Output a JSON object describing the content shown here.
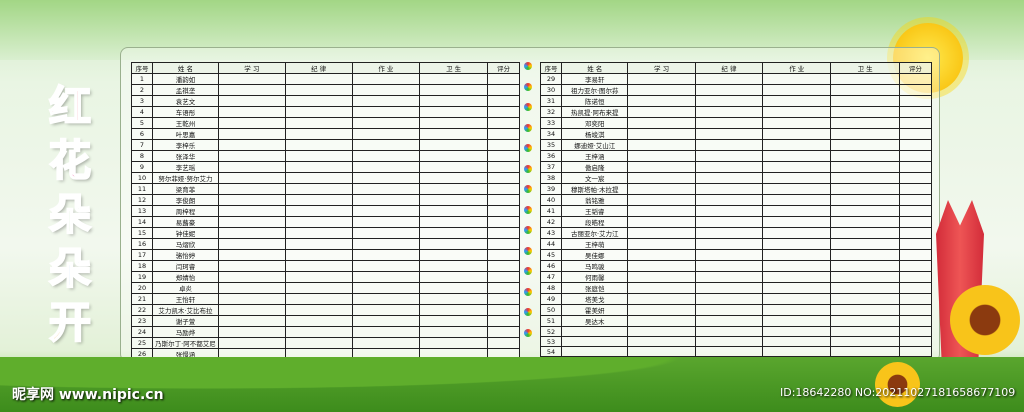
{
  "title_chars": [
    "红",
    "花",
    "朵",
    "朵",
    "开"
  ],
  "title_colors": [
    "#e8202a",
    "#e83d8f",
    "#3fa52a",
    "#1e8ce0",
    "#f08a1a"
  ],
  "headers": {
    "no": "序号",
    "name": "姓 名",
    "study": "学 习",
    "discipline": "纪 律",
    "homework": "作 业",
    "hygiene": "卫 生",
    "score": "评分"
  },
  "left_rows": [
    {
      "no": "1",
      "name": "潘韵如"
    },
    {
      "no": "2",
      "name": "孟祺垄"
    },
    {
      "no": "3",
      "name": "袁艺文"
    },
    {
      "no": "4",
      "name": "车语彤"
    },
    {
      "no": "5",
      "name": "王乾州"
    },
    {
      "no": "6",
      "name": "叶思嘉"
    },
    {
      "no": "7",
      "name": "李梓乐"
    },
    {
      "no": "8",
      "name": "张泽华"
    },
    {
      "no": "9",
      "name": "李艺瑶"
    },
    {
      "no": "10",
      "name": "努尔菲娅·努尔艾力"
    },
    {
      "no": "11",
      "name": "梁育菲"
    },
    {
      "no": "12",
      "name": "李俊朗"
    },
    {
      "no": "13",
      "name": "周梓程"
    },
    {
      "no": "14",
      "name": "易蕗豪"
    },
    {
      "no": "15",
      "name": "钟佳妮"
    },
    {
      "no": "16",
      "name": "马熠欣"
    },
    {
      "no": "17",
      "name": "骆怡婷"
    },
    {
      "no": "18",
      "name": "闫珂睿"
    },
    {
      "no": "19",
      "name": "郑婧怡"
    },
    {
      "no": "20",
      "name": "卓炎"
    },
    {
      "no": "21",
      "name": "王怡轩"
    },
    {
      "no": "22",
      "name": "艾力凯木·艾比布拉"
    },
    {
      "no": "23",
      "name": "谢子萱"
    },
    {
      "no": "24",
      "name": "马励烨"
    },
    {
      "no": "25",
      "name": "乃斯尔丁·阿不都艾尼"
    },
    {
      "no": "26",
      "name": "张憬涵"
    },
    {
      "no": "27",
      "name": "媞珂娅·艾合提"
    },
    {
      "no": "28",
      "name": "木再帕尔·迪力穆拉提"
    }
  ],
  "right_rows": [
    {
      "no": "29",
      "name": "李易轩"
    },
    {
      "no": "30",
      "name": "祖力亚尔·图尔荪"
    },
    {
      "no": "31",
      "name": "陈诺恒"
    },
    {
      "no": "32",
      "name": "热凯提·阿布来提"
    },
    {
      "no": "33",
      "name": "邓奕阳"
    },
    {
      "no": "34",
      "name": "杨竣淇"
    },
    {
      "no": "35",
      "name": "娜迪娅·艾山江"
    },
    {
      "no": "36",
      "name": "王梓涵"
    },
    {
      "no": "37",
      "name": "傲启隆"
    },
    {
      "no": "38",
      "name": "文一宸"
    },
    {
      "no": "39",
      "name": "穆斯塔帕·木拉提"
    },
    {
      "no": "40",
      "name": "翁铭雅"
    },
    {
      "no": "41",
      "name": "王韬睿"
    },
    {
      "no": "42",
      "name": "段皓程"
    },
    {
      "no": "43",
      "name": "古丽亚尔·艾力江"
    },
    {
      "no": "44",
      "name": "王梓萌"
    },
    {
      "no": "45",
      "name": "吴佳娜"
    },
    {
      "no": "46",
      "name": "马鸣骏"
    },
    {
      "no": "47",
      "name": "何雨馨"
    },
    {
      "no": "48",
      "name": "张庭恺"
    },
    {
      "no": "49",
      "name": "塔美戈"
    },
    {
      "no": "50",
      "name": "霍美妍"
    },
    {
      "no": "51",
      "name": "吴达木"
    },
    {
      "no": "52",
      "name": ""
    },
    {
      "no": "53",
      "name": ""
    },
    {
      "no": "54",
      "name": ""
    },
    {
      "no": "55",
      "name": ""
    },
    {
      "no": "56",
      "name": ""
    }
  ],
  "watermark": {
    "logo": "昵享网 www.nipic.cn",
    "id": "ID:18642280 NO:20211027181658677109"
  }
}
